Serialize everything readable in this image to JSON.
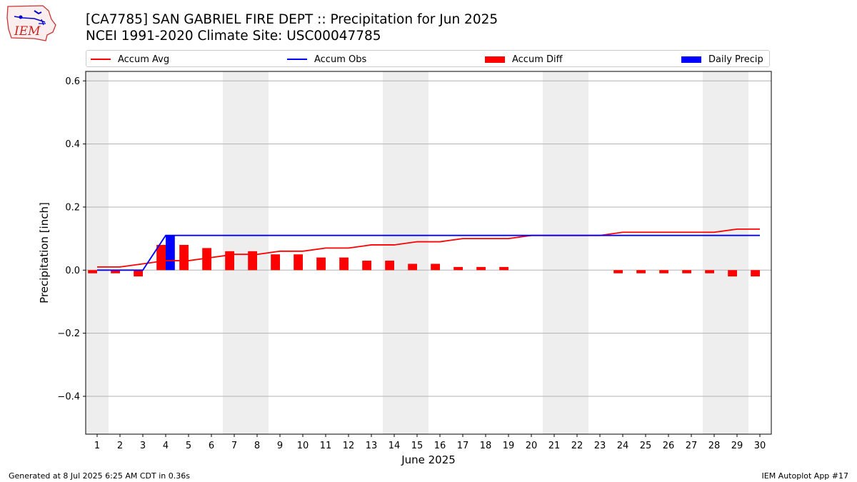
{
  "header": {
    "title_line1": "[CA7785] SAN GABRIEL FIRE DEPT :: Precipitation for Jun 2025",
    "title_line2": "NCEI 1991-2020 Climate Site: USC00047785",
    "logo_text": "IEM"
  },
  "legend": {
    "items": [
      {
        "label": "Accum Avg",
        "color": "#ff0000",
        "kind": "line"
      },
      {
        "label": "Accum Obs",
        "color": "#0000ff",
        "kind": "line"
      },
      {
        "label": "Accum Diff",
        "color": "#ff0000",
        "kind": "bar"
      },
      {
        "label": "Daily Precip",
        "color": "#0000ff",
        "kind": "bar"
      }
    ]
  },
  "chart_data": {
    "type": "bar",
    "xlabel": "June 2025",
    "ylabel": "Precipitation [inch]",
    "xlim": [
      0.5,
      30.5
    ],
    "ylim": [
      -0.52,
      0.63
    ],
    "yticks": [
      -0.4,
      -0.2,
      0.0,
      0.2,
      0.4,
      0.6
    ],
    "grid": "horizontal",
    "legend_position": "top",
    "weekend_shading": [
      [
        0.5,
        1.5
      ],
      [
        6.5,
        8.5
      ],
      [
        13.5,
        15.5
      ],
      [
        20.5,
        22.5
      ],
      [
        27.5,
        29.5
      ]
    ],
    "days": [
      1,
      2,
      3,
      4,
      5,
      6,
      7,
      8,
      9,
      10,
      11,
      12,
      13,
      14,
      15,
      16,
      17,
      18,
      19,
      20,
      21,
      22,
      23,
      24,
      25,
      26,
      27,
      28,
      29,
      30
    ],
    "series": [
      {
        "name": "Accum Avg",
        "type": "line",
        "color": "#ff0000",
        "values": [
          0.01,
          0.01,
          0.02,
          0.03,
          0.03,
          0.04,
          0.05,
          0.05,
          0.06,
          0.06,
          0.07,
          0.07,
          0.08,
          0.08,
          0.09,
          0.09,
          0.1,
          0.1,
          0.1,
          0.11,
          0.11,
          0.11,
          0.11,
          0.12,
          0.12,
          0.12,
          0.12,
          0.12,
          0.13,
          0.13
        ]
      },
      {
        "name": "Accum Obs",
        "type": "line",
        "color": "#0000ff",
        "values": [
          0.0,
          0.0,
          0.0,
          0.11,
          0.11,
          0.11,
          0.11,
          0.11,
          0.11,
          0.11,
          0.11,
          0.11,
          0.11,
          0.11,
          0.11,
          0.11,
          0.11,
          0.11,
          0.11,
          0.11,
          0.11,
          0.11,
          0.11,
          0.11,
          0.11,
          0.11,
          0.11,
          0.11,
          0.11,
          0.11
        ]
      },
      {
        "name": "Accum Diff",
        "type": "bar",
        "color": "#ff0000",
        "values": [
          -0.01,
          -0.01,
          -0.02,
          0.08,
          0.08,
          0.07,
          0.06,
          0.06,
          0.05,
          0.05,
          0.04,
          0.04,
          0.03,
          0.03,
          0.02,
          0.02,
          0.01,
          0.01,
          0.01,
          0.0,
          0.0,
          0.0,
          0.0,
          -0.01,
          -0.01,
          -0.01,
          -0.01,
          -0.01,
          -0.02,
          -0.02
        ]
      },
      {
        "name": "Daily Precip",
        "type": "bar",
        "color": "#0000ff",
        "values": [
          0,
          0,
          0,
          0.11,
          0,
          0,
          0,
          0,
          0,
          0,
          0,
          0,
          0,
          0,
          0,
          0,
          0,
          0,
          0,
          0,
          0,
          0,
          0,
          0,
          0,
          0,
          0,
          0,
          0,
          0
        ]
      }
    ]
  },
  "footer": {
    "left": "Generated at 8 Jul 2025 6:25 AM CDT in 0.36s",
    "right": "IEM Autoplot App #17"
  }
}
